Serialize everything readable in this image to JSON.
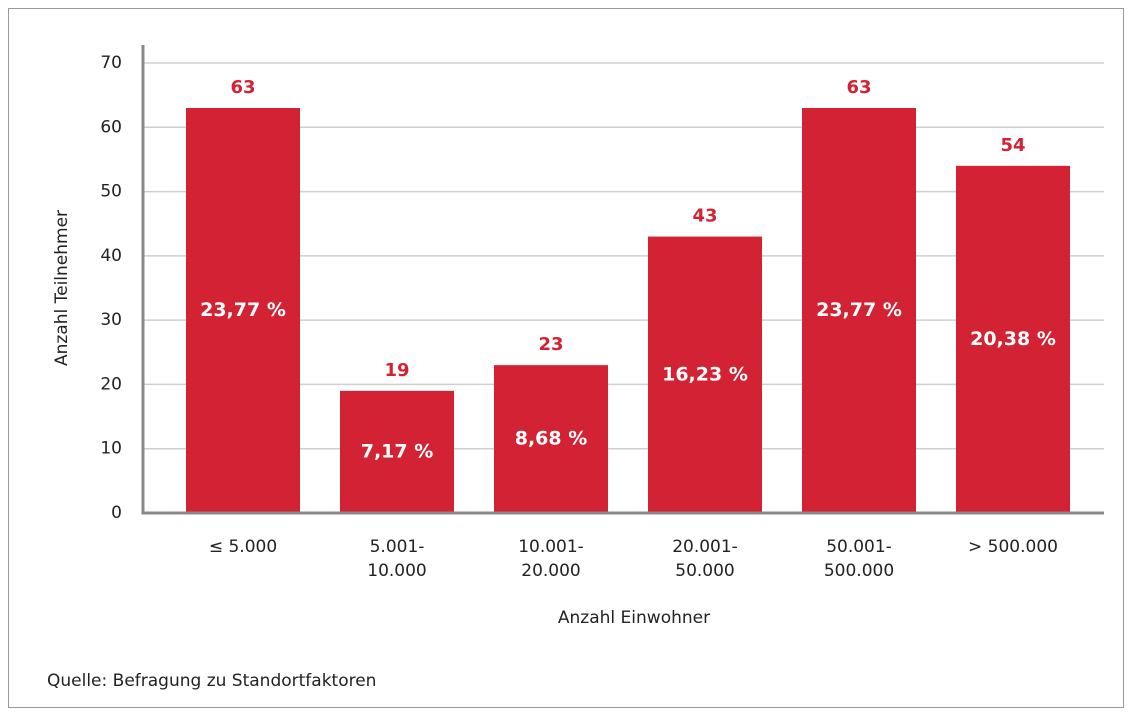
{
  "chart_data": {
    "type": "bar",
    "categories": [
      "≤ 5.000",
      "5.001-\n10.000",
      "10.001-\n20.000",
      "20.001-\n50.000",
      "50.001-\n500.000",
      "> 500.000"
    ],
    "values": [
      63,
      19,
      23,
      43,
      63,
      54
    ],
    "percentages": [
      23.77,
      7.17,
      8.68,
      16.23,
      23.77,
      20.38
    ],
    "percentage_labels": [
      "23,77 %",
      "7,17 %",
      "8,68 %",
      "16,23 %",
      "23,77 %",
      "20,38 %"
    ],
    "color": "#d22233",
    "ylim": [
      0,
      70
    ],
    "yticks": [
      0,
      10,
      20,
      30,
      40,
      50,
      60,
      70
    ],
    "grid": true,
    "y_label": "Anzahl Teilnehmer",
    "x_label": "Anzahl Einwohner",
    "source": "Quelle: Befragung zu Standortfaktoren"
  }
}
